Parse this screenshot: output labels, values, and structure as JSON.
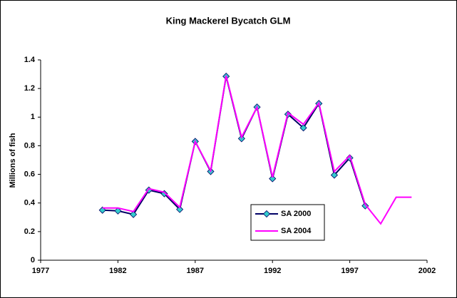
{
  "chart_data": {
    "type": "line",
    "title": "King Mackerel Bycatch GLM",
    "y_label": "Millions of fish",
    "x": [
      1981,
      1982,
      1983,
      1984,
      1985,
      1986,
      1987,
      1988,
      1989,
      1990,
      1991,
      1992,
      1993,
      1994,
      1995,
      1996,
      1997,
      1998,
      1999,
      2000,
      2001
    ],
    "series": [
      {
        "name": "SA 2000",
        "color": "#000066",
        "marker_color": "#33cccc",
        "values": [
          0.35,
          0.345,
          0.32,
          0.49,
          0.465,
          0.355,
          0.83,
          0.62,
          1.285,
          0.85,
          1.07,
          0.57,
          1.02,
          0.925,
          1.095,
          0.595,
          0.715,
          0.38,
          null,
          null,
          null
        ]
      },
      {
        "name": "SA 2004",
        "color": "#ff00ff",
        "values": [
          0.365,
          0.365,
          0.34,
          0.5,
          0.475,
          0.37,
          0.83,
          0.625,
          1.29,
          0.86,
          1.07,
          0.58,
          1.03,
          0.95,
          1.1,
          0.62,
          0.73,
          0.39,
          0.255,
          0.44,
          0.44
        ]
      }
    ],
    "xlim": [
      1977,
      2002
    ],
    "xticks": [
      1977,
      1982,
      1987,
      1992,
      1997,
      2002
    ],
    "ylim": [
      0,
      1.4
    ],
    "yticks": [
      0,
      0.2,
      0.4,
      0.6,
      0.8,
      1,
      1.2,
      1.4
    ]
  }
}
